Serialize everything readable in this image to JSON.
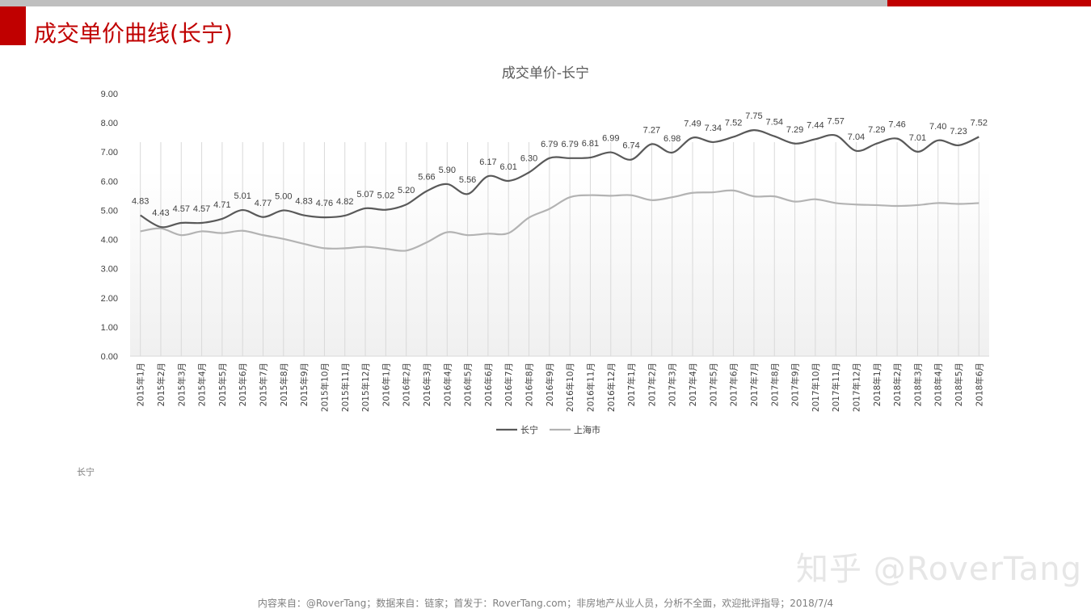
{
  "page": {
    "title": "成交单价曲线(长宁)",
    "note": "长宁",
    "watermark": "知乎 @RoverTang",
    "footer": "内容来自：@RoverTang；数据来自：链家；首发于：RoverTang.com；非房地产从业人员，分析不全面，欢迎批评指导；2018/7/4",
    "colors": {
      "accent": "#c00000",
      "series1": "#595959",
      "series2": "#b3b3b3"
    }
  },
  "chart_data": {
    "type": "line",
    "title": "成交单价-长宁",
    "xlabel": "",
    "ylabel": "",
    "ylim": [
      0,
      9
    ],
    "yticks": [
      "0.00",
      "1.00",
      "2.00",
      "3.00",
      "4.00",
      "5.00",
      "6.00",
      "7.00",
      "8.00",
      "9.00"
    ],
    "grid": "vertical",
    "legend": "bottom",
    "smooth": true,
    "categories": [
      "2015年1月",
      "2015年2月",
      "2015年3月",
      "2015年4月",
      "2015年5月",
      "2015年6月",
      "2015年7月",
      "2015年8月",
      "2015年9月",
      "2015年10月",
      "2015年11月",
      "2015年12月",
      "2016年1月",
      "2016年2月",
      "2016年3月",
      "2016年4月",
      "2016年5月",
      "2016年6月",
      "2016年7月",
      "2016年8月",
      "2016年9月",
      "2016年10月",
      "2016年11月",
      "2016年12月",
      "2017年1月",
      "2017年2月",
      "2017年3月",
      "2017年4月",
      "2017年5月",
      "2017年6月",
      "2017年7月",
      "2017年8月",
      "2017年9月",
      "2017年10月",
      "2017年11月",
      "2017年12月",
      "2018年1月",
      "2018年2月",
      "2018年3月",
      "2018年4月",
      "2018年5月",
      "2018年6月"
    ],
    "series": [
      {
        "name": "长宁",
        "color": "#595959",
        "labels": true,
        "values": [
          4.83,
          4.43,
          4.57,
          4.57,
          4.71,
          5.01,
          4.77,
          5.0,
          4.83,
          4.76,
          4.82,
          5.07,
          5.02,
          5.2,
          5.66,
          5.9,
          5.56,
          6.17,
          6.01,
          6.3,
          6.79,
          6.79,
          6.81,
          6.99,
          6.74,
          7.27,
          6.98,
          7.49,
          7.34,
          7.52,
          7.75,
          7.54,
          7.29,
          7.44,
          7.57,
          7.04,
          7.29,
          7.46,
          7.01,
          7.4,
          7.23,
          7.52
        ]
      },
      {
        "name": "上海市",
        "color": "#b3b3b3",
        "labels": false,
        "values": [
          4.28,
          4.38,
          4.15,
          4.28,
          4.22,
          4.3,
          4.15,
          4.02,
          3.85,
          3.7,
          3.7,
          3.75,
          3.68,
          3.62,
          3.9,
          4.25,
          4.15,
          4.2,
          4.22,
          4.75,
          5.05,
          5.45,
          5.52,
          5.5,
          5.52,
          5.35,
          5.45,
          5.6,
          5.62,
          5.68,
          5.48,
          5.48,
          5.3,
          5.38,
          5.25,
          5.2,
          5.18,
          5.15,
          5.18,
          5.25,
          5.22,
          5.25
        ]
      }
    ]
  }
}
